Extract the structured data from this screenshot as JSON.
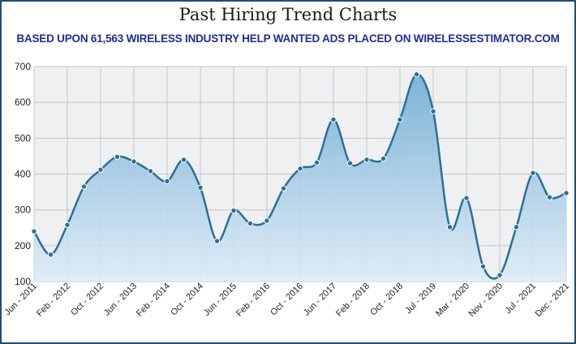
{
  "title": "Past Hiring Trend Charts",
  "subtitle": "BASED UPON 61,563 WIRELESS INDUSTRY HELP WANTED ADS PLACED ON WIRELESSESTIMATOR.COM",
  "colors": {
    "line": "#2e6f97",
    "fill_top": "#6aa9d2",
    "fill_bottom": "#dcecf7",
    "plot_bg": "#eef0f2",
    "grid": "#c4c7ca",
    "border": "#1f4e79",
    "subtitle": "#1f2f8f"
  },
  "chart_data": {
    "type": "area",
    "title": "Past Hiring Trend Charts",
    "subtitle": "BASED UPON 61,563 WIRELESS INDUSTRY HELP WANTED ADS PLACED ON WIRELESSESTIMATOR.COM",
    "xlabel": "",
    "ylabel": "",
    "ylim": [
      100,
      700
    ],
    "yticks": [
      100,
      200,
      300,
      400,
      500,
      600,
      700
    ],
    "grid": true,
    "legend": "none",
    "x_tick_labels": [
      "Jun - 2011",
      "Feb - 2012",
      "Oct - 2012",
      "Jun - 2013",
      "Feb - 2014",
      "Oct - 2014",
      "Jun - 2015",
      "Feb - 2016",
      "Oct - 2016",
      "Jun - 2017",
      "Feb - 2018",
      "Oct - 2018",
      "Jul - 2019",
      "Mar - 2020",
      "Nov - 2020",
      "Jul - 2021",
      "Dec - 2021"
    ],
    "values": [
      240,
      175,
      258,
      365,
      412,
      448,
      435,
      408,
      380,
      440,
      362,
      213,
      298,
      262,
      270,
      360,
      415,
      432,
      552,
      430,
      440,
      443,
      552,
      678,
      575,
      252,
      333,
      142,
      118,
      252,
      403,
      335,
      347
    ]
  }
}
